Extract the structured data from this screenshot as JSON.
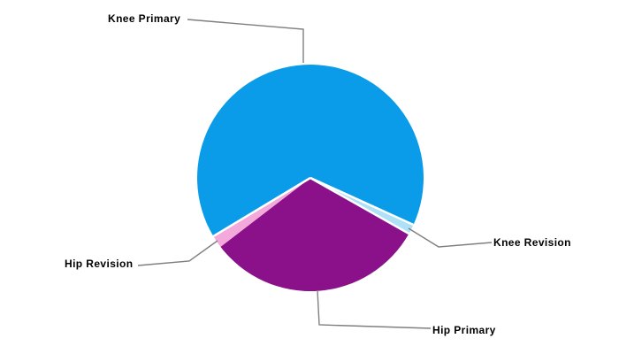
{
  "chart_data": {
    "type": "pie",
    "slices": [
      {
        "label": "Knee Primary",
        "value": 65.4,
        "color": "#0A9CE8"
      },
      {
        "label": "Knee Revision",
        "value": 1.4,
        "color": "#AEE1F6"
      },
      {
        "label": "Hip Primary",
        "value": 31.4,
        "color": "#8A1189"
      },
      {
        "label": "Hip Revision",
        "value": 1.8,
        "color": "#F3AADA"
      }
    ],
    "start_angle_deg": -121,
    "separators_after_slice": [
      0,
      1,
      3
    ],
    "separator_color": "#FFFFFF",
    "background": "#FFFFFF",
    "callout_line_color": "#7F7F7F",
    "label_text_color": "#000000",
    "label_style": "callout",
    "legend": "none"
  }
}
